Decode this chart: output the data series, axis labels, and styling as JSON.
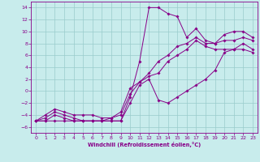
{
  "xlabel": "Windchill (Refroidissement éolien,°C)",
  "xlim": [
    -0.5,
    23.5
  ],
  "ylim": [
    -7,
    15
  ],
  "xticks": [
    0,
    1,
    2,
    3,
    4,
    5,
    6,
    7,
    8,
    9,
    10,
    11,
    12,
    13,
    14,
    15,
    16,
    17,
    18,
    19,
    20,
    21,
    22,
    23
  ],
  "yticks": [
    -6,
    -4,
    -2,
    0,
    2,
    4,
    6,
    8,
    10,
    12,
    14
  ],
  "bg_color": "#c8ecec",
  "line_color": "#880088",
  "grid_color": "#99cccc",
  "series": [
    {
      "x": [
        0,
        1,
        2,
        3,
        4,
        5,
        6,
        7,
        8,
        9,
        10,
        11,
        12,
        13,
        14,
        15,
        16,
        17,
        18,
        19,
        20,
        21,
        22,
        23
      ],
      "y": [
        -5,
        -5,
        -5,
        -5,
        -5,
        -5,
        -5,
        -5,
        -5,
        -5,
        -1,
        5,
        14,
        14,
        13,
        12.5,
        9,
        10.5,
        8.5,
        8,
        9.5,
        10,
        10,
        9
      ]
    },
    {
      "x": [
        0,
        1,
        2,
        3,
        4,
        5,
        6,
        7,
        8,
        9,
        10,
        11,
        12,
        13,
        14,
        15,
        16,
        17,
        18,
        19,
        20,
        21,
        22,
        23
      ],
      "y": [
        -5,
        -5,
        -4,
        -4.5,
        -5,
        -5,
        -5,
        -5,
        -5,
        -5,
        -2,
        1,
        2,
        -1.5,
        -2,
        -1,
        0,
        1,
        2,
        3.5,
        6.5,
        7,
        7,
        6.5
      ]
    },
    {
      "x": [
        0,
        1,
        2,
        3,
        4,
        5,
        6,
        7,
        8,
        9,
        10,
        11,
        12,
        13,
        14,
        15,
        16,
        17,
        18,
        19,
        20,
        21,
        22,
        23
      ],
      "y": [
        -5,
        -4.5,
        -3.5,
        -4,
        -4.5,
        -5,
        -5,
        -5,
        -4.5,
        -4,
        -0.5,
        1.5,
        2.5,
        3,
        5,
        6,
        7,
        8.5,
        7.5,
        7,
        7,
        7,
        8,
        7
      ]
    },
    {
      "x": [
        0,
        1,
        2,
        3,
        4,
        5,
        6,
        7,
        8,
        9,
        10,
        11,
        12,
        13,
        14,
        15,
        16,
        17,
        18,
        19,
        20,
        21,
        22,
        23
      ],
      "y": [
        -5,
        -4,
        -3,
        -3.5,
        -4,
        -4,
        -4,
        -4.5,
        -4.5,
        -3.5,
        0.5,
        1.5,
        3,
        5,
        6,
        7.5,
        8,
        9,
        8,
        8,
        8.5,
        8.5,
        9,
        8.5
      ]
    }
  ]
}
